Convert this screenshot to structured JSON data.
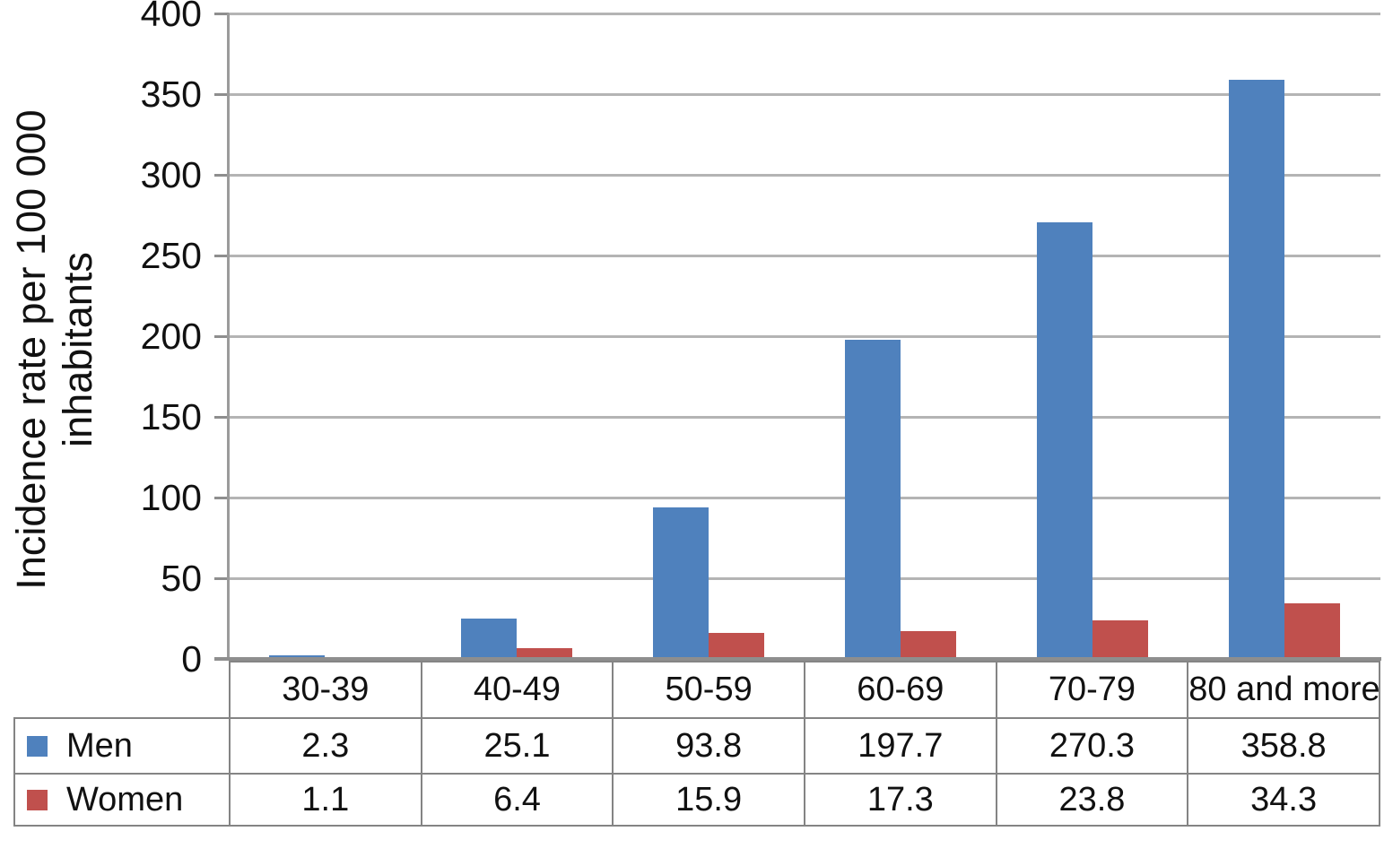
{
  "figure": {
    "ylabel_line1": "Incidence rate per 100 000",
    "ylabel_line2": "inhabitants"
  },
  "chart_data": {
    "type": "bar",
    "title": "",
    "xlabel": "",
    "ylabel": "Incidence rate per 100 000 inhabitants",
    "categories": [
      "30-39",
      "40-49",
      "50-59",
      "60-69",
      "70-79",
      "80 and more"
    ],
    "series": [
      {
        "name": "Men",
        "color": "#4f81bd",
        "values": [
          2.3,
          25.1,
          93.8,
          197.7,
          270.3,
          358.8
        ]
      },
      {
        "name": "Women",
        "color": "#c0504d",
        "values": [
          1.1,
          6.4,
          15.9,
          17.3,
          23.8,
          34.3
        ]
      }
    ],
    "ylim": [
      0,
      400
    ],
    "yticks": [
      400,
      350,
      300,
      250,
      200,
      150,
      100,
      50,
      0
    ],
    "grid": true,
    "legend_position": "bottom-table-left",
    "colors": {
      "men_bar": "#4f81bd",
      "women_bar": "#c0504d",
      "gridline": "#b4b4b4",
      "axis": "#8e8e8e",
      "table_border": "#848484",
      "text": "#111111",
      "background": "#ffffff"
    }
  }
}
